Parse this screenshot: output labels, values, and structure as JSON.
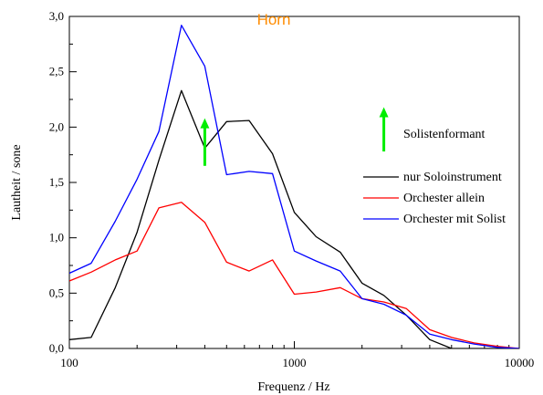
{
  "chart_data": {
    "type": "line",
    "title": "Horn",
    "title_color": "#ff8c00",
    "xlabel": "Frequenz / Hz",
    "ylabel": "Lautheit / sone",
    "xscale": "log",
    "xlim": [
      100,
      10000
    ],
    "ylim": [
      0,
      3.0
    ],
    "x_ticks": [
      100,
      1000,
      10000
    ],
    "x_tick_labels": [
      "100",
      "1000",
      "10000"
    ],
    "y_ticks": [
      0,
      0.5,
      1.0,
      1.5,
      2.0,
      2.5,
      3.0
    ],
    "y_tick_labels": [
      "0,0",
      "0,5",
      "1,0",
      "1,5",
      "2,0",
      "2,5",
      "3,0"
    ],
    "grid": false,
    "legend_position": "right",
    "series": [
      {
        "name": "nur Soloinstrument",
        "color": "#000000",
        "x": [
          100,
          125,
          160,
          200,
          250,
          315,
          400,
          500,
          630,
          800,
          1000,
          1250,
          1600,
          2000,
          2500,
          3150,
          4000,
          5000,
          6300,
          8000,
          10000
        ],
        "y": [
          0.08,
          0.1,
          0.55,
          1.05,
          1.7,
          2.33,
          1.81,
          2.05,
          2.06,
          1.76,
          1.23,
          1.01,
          0.87,
          0.59,
          0.48,
          0.3,
          0.08,
          0.0,
          0.0,
          0.0,
          0.0
        ]
      },
      {
        "name": "Orchester allein",
        "color": "#ff0000",
        "x": [
          100,
          125,
          160,
          200,
          250,
          315,
          400,
          500,
          630,
          800,
          1000,
          1250,
          1600,
          2000,
          2500,
          3150,
          4000,
          5000,
          6300,
          8000,
          10000
        ],
        "y": [
          0.61,
          0.69,
          0.8,
          0.88,
          1.27,
          1.32,
          1.14,
          0.78,
          0.7,
          0.8,
          0.49,
          0.51,
          0.55,
          0.45,
          0.42,
          0.36,
          0.17,
          0.1,
          0.05,
          0.02,
          0.0
        ]
      },
      {
        "name": "Orchester mit Solist",
        "color": "#0000ff",
        "x": [
          100,
          125,
          160,
          200,
          250,
          315,
          400,
          500,
          630,
          800,
          1000,
          1250,
          1600,
          2000,
          2500,
          3150,
          4000,
          5000,
          6300,
          8000,
          10000
        ],
        "y": [
          0.68,
          0.77,
          1.15,
          1.53,
          1.96,
          2.92,
          2.55,
          1.57,
          1.6,
          1.58,
          0.88,
          0.79,
          0.7,
          0.45,
          0.4,
          0.3,
          0.13,
          0.08,
          0.04,
          0.01,
          0.0
        ]
      }
    ],
    "annotations": [
      {
        "text": "Solistenformant"
      }
    ],
    "arrow_color": "#00ee00",
    "arrows": [
      {
        "x": 400,
        "y_from": 1.65,
        "y_to": 2.08
      },
      {
        "x": 2500,
        "y_from": 1.78,
        "y_to": 2.18
      }
    ]
  }
}
